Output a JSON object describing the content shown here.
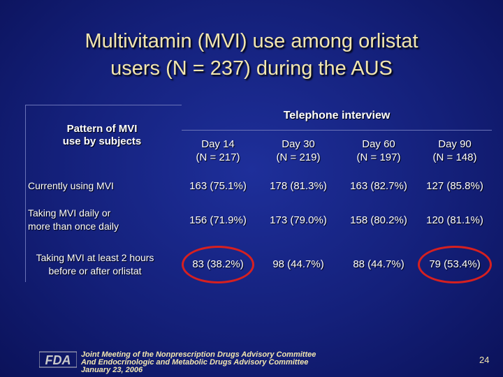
{
  "title": {
    "line1": "Multivitamin (MVI) use among orlistat",
    "line2": "users  (N = 237) during the AUS"
  },
  "table": {
    "pattern_header_line1": "Pattern of MVI",
    "pattern_header_line2": "use by subjects",
    "telephone_header": "Telephone interview",
    "columns": [
      {
        "day": "Day 14",
        "n": "(N = 217)"
      },
      {
        "day": "Day 30",
        "n": "(N = 219)"
      },
      {
        "day": "Day 60",
        "n": "(N = 197)"
      },
      {
        "day": "Day 90",
        "n": "(N = 148)"
      }
    ],
    "rows": [
      {
        "label_line1": "Currently using MVI",
        "label_line2": "",
        "values": [
          "163 (75.1%)",
          "178 (81.3%)",
          "163 (82.7%)",
          "127 (85.8%)"
        ]
      },
      {
        "label_line1": "Taking MVI daily or",
        "label_line2": "more than once daily",
        "values": [
          "156 (71.9%)",
          "173 (79.0%)",
          "158 (80.2%)",
          "120 (81.1%)"
        ]
      },
      {
        "label_line1": "Taking MVI at least 2 hours",
        "label_line2": "before or after orlistat",
        "values": [
          "83 (38.2%)",
          "98 (44.7%)",
          "88 (44.7%)",
          "79 (53.4%)"
        ]
      }
    ]
  },
  "footer": {
    "line1": "Joint Meeting of the Nonprescription Drugs Advisory Committee",
    "line2": "And Endocrinologic and Metabolic Drugs Advisory Committee",
    "line3": "January 23, 2006",
    "logo_text": "FDA"
  },
  "page_number": "24",
  "colors": {
    "background": "#14207a",
    "title": "#f2e6b0",
    "highlight_circle": "#d62020"
  }
}
